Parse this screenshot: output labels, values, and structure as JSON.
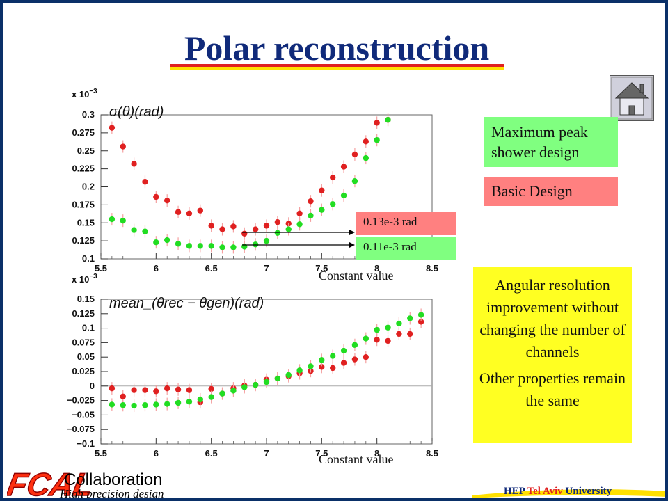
{
  "title": "Polar reconstruction",
  "legend_boxes": {
    "green": "Maximum peak shower design",
    "red": "Basic Design"
  },
  "annotations": {
    "red_value": "0.13e-3 rad",
    "green_value": "0.11e-3 rad",
    "constant_top": "Constant value",
    "constant_bottom": "Constant value"
  },
  "yellow_box": {
    "line1": "Angular resolution improvement without changing the number of channels",
    "line2": "Other properties remain the same"
  },
  "footer": {
    "logo": "FCAL",
    "collab": "Collaboration",
    "subtitle": "High precision design",
    "uni_hep": "HEP",
    "uni_tel": "Tel Aviv",
    "uni_univ": "University"
  },
  "colors": {
    "title": "#102a7a",
    "red_series": "#e02020",
    "green_series": "#22dd22",
    "legend_green": "#80ff80",
    "legend_red": "#ff8080",
    "yellow_box": "#ffff22"
  },
  "chart_data": [
    {
      "type": "scatter",
      "multiplier": "x 10^-3",
      "title_formula": "σ(θ)(rad)",
      "xlim": [
        5.5,
        8.5
      ],
      "ylim": [
        0.1,
        0.3
      ],
      "x_ticks": [
        "5.5",
        "6",
        "6.5",
        "7",
        "7.5",
        "8",
        "8.5"
      ],
      "y_ticks": [
        "0.1",
        "0.125",
        "0.15",
        "0.175",
        "0.2",
        "0.225",
        "0.25",
        "0.275",
        "0.3"
      ],
      "series": [
        {
          "color": "red",
          "points": [
            [
              5.6,
              0.282
            ],
            [
              5.7,
              0.256
            ],
            [
              5.8,
              0.232
            ],
            [
              5.9,
              0.207
            ],
            [
              6.0,
              0.186
            ],
            [
              6.1,
              0.181
            ],
            [
              6.2,
              0.165
            ],
            [
              6.3,
              0.163
            ],
            [
              6.4,
              0.167
            ],
            [
              6.5,
              0.146
            ],
            [
              6.6,
              0.141
            ],
            [
              6.7,
              0.145
            ],
            [
              6.8,
              0.135
            ],
            [
              6.9,
              0.141
            ],
            [
              7.0,
              0.146
            ],
            [
              7.1,
              0.151
            ],
            [
              7.2,
              0.149
            ],
            [
              7.3,
              0.163
            ],
            [
              7.4,
              0.18
            ],
            [
              7.5,
              0.195
            ],
            [
              7.6,
              0.213
            ],
            [
              7.7,
              0.228
            ],
            [
              7.8,
              0.245
            ],
            [
              7.9,
              0.263
            ],
            [
              8.0,
              0.289
            ],
            [
              8.1,
              0.293
            ]
          ]
        },
        {
          "color": "green",
          "points": [
            [
              5.6,
              0.155
            ],
            [
              5.7,
              0.153
            ],
            [
              5.8,
              0.14
            ],
            [
              5.9,
              0.138
            ],
            [
              6.0,
              0.123
            ],
            [
              6.1,
              0.126
            ],
            [
              6.2,
              0.121
            ],
            [
              6.3,
              0.118
            ],
            [
              6.4,
              0.118
            ],
            [
              6.5,
              0.118
            ],
            [
              6.6,
              0.116
            ],
            [
              6.7,
              0.116
            ],
            [
              6.8,
              0.117
            ],
            [
              6.9,
              0.12
            ],
            [
              7.0,
              0.125
            ],
            [
              7.1,
              0.136
            ],
            [
              7.2,
              0.141
            ],
            [
              7.3,
              0.148
            ],
            [
              7.4,
              0.16
            ],
            [
              7.5,
              0.168
            ],
            [
              7.6,
              0.176
            ],
            [
              7.7,
              0.188
            ],
            [
              7.8,
              0.208
            ],
            [
              7.9,
              0.24
            ],
            [
              8.0,
              0.265
            ],
            [
              8.1,
              0.293
            ]
          ]
        }
      ]
    },
    {
      "type": "scatter",
      "multiplier": "x 10^-3",
      "title_formula": "mean_(θrec − θgen)(rad)",
      "xlim": [
        5.5,
        8.5
      ],
      "ylim": [
        -0.1,
        0.15
      ],
      "x_ticks": [
        "5.5",
        "6",
        "6.5",
        "7",
        "7.5",
        "8",
        "8.5"
      ],
      "y_ticks": [
        "−0.1",
        "−0.075",
        "−0.05",
        "−0.025",
        "0",
        "0.025",
        "0.05",
        "0.075",
        "0.1",
        "0.125",
        "0.15"
      ],
      "series": [
        {
          "color": "red",
          "points": [
            [
              5.6,
              -0.004
            ],
            [
              5.7,
              -0.018
            ],
            [
              5.8,
              -0.007
            ],
            [
              5.9,
              -0.007
            ],
            [
              6.0,
              -0.009
            ],
            [
              6.1,
              -0.004
            ],
            [
              6.2,
              -0.006
            ],
            [
              6.3,
              -0.007
            ],
            [
              6.4,
              -0.028
            ],
            [
              6.5,
              -0.005
            ],
            [
              6.6,
              -0.013
            ],
            [
              6.7,
              -0.004
            ],
            [
              6.8,
              0.001
            ],
            [
              6.9,
              0.002
            ],
            [
              7.0,
              0.011
            ],
            [
              7.1,
              0.013
            ],
            [
              7.2,
              0.017
            ],
            [
              7.3,
              0.022
            ],
            [
              7.4,
              0.026
            ],
            [
              7.5,
              0.033
            ],
            [
              7.6,
              0.031
            ],
            [
              7.7,
              0.04
            ],
            [
              7.8,
              0.046
            ],
            [
              7.9,
              0.05
            ],
            [
              8.0,
              0.08
            ],
            [
              8.1,
              0.078
            ],
            [
              8.2,
              0.09
            ],
            [
              8.3,
              0.09
            ],
            [
              8.4,
              0.111
            ]
          ]
        },
        {
          "color": "green",
          "points": [
            [
              5.6,
              -0.032
            ],
            [
              5.7,
              -0.033
            ],
            [
              5.8,
              -0.034
            ],
            [
              5.9,
              -0.033
            ],
            [
              6.0,
              -0.032
            ],
            [
              6.1,
              -0.031
            ],
            [
              6.2,
              -0.029
            ],
            [
              6.3,
              -0.027
            ],
            [
              6.4,
              -0.023
            ],
            [
              6.5,
              -0.019
            ],
            [
              6.6,
              -0.013
            ],
            [
              6.7,
              -0.008
            ],
            [
              6.8,
              -0.002
            ],
            [
              6.9,
              0.002
            ],
            [
              7.0,
              0.007
            ],
            [
              7.1,
              0.013
            ],
            [
              7.2,
              0.019
            ],
            [
              7.3,
              0.027
            ],
            [
              7.4,
              0.034
            ],
            [
              7.5,
              0.045
            ],
            [
              7.6,
              0.052
            ],
            [
              7.7,
              0.061
            ],
            [
              7.8,
              0.071
            ],
            [
              7.9,
              0.082
            ],
            [
              8.0,
              0.097
            ],
            [
              8.1,
              0.101
            ],
            [
              8.2,
              0.108
            ],
            [
              8.3,
              0.117
            ],
            [
              8.4,
              0.123
            ]
          ]
        }
      ]
    }
  ]
}
